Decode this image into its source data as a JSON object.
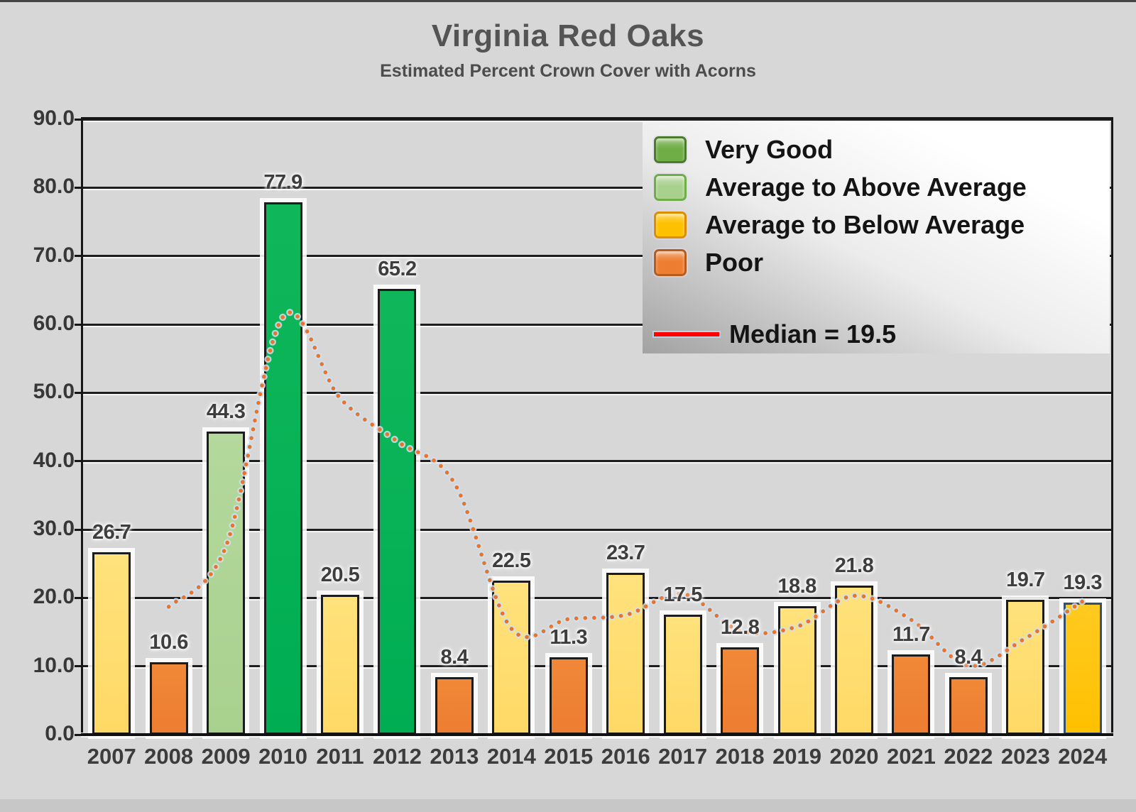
{
  "chart_data": {
    "type": "bar",
    "title": "Virginia Red Oaks",
    "subtitle": "Estimated Percent Crown Cover with Acorns",
    "xlabel": "",
    "ylabel": "",
    "ylim": [
      0,
      90
    ],
    "ytick_step": 10,
    "ytick_labels": [
      "0.0",
      "10.0",
      "20.0",
      "30.0",
      "40.0",
      "50.0",
      "60.0",
      "70.0",
      "80.0",
      "90.0"
    ],
    "grid": "horizontal",
    "legend_position": "top-right",
    "categories": [
      "2007",
      "2008",
      "2009",
      "2010",
      "2011",
      "2012",
      "2013",
      "2014",
      "2015",
      "2016",
      "2017",
      "2018",
      "2019",
      "2020",
      "2021",
      "2022",
      "2023",
      "2024"
    ],
    "series": [
      {
        "name": "Estimated Percent Crown Cover with Acorns",
        "type": "bar",
        "values": [
          26.7,
          10.6,
          44.3,
          77.9,
          20.5,
          65.2,
          8.4,
          22.5,
          11.3,
          23.7,
          17.5,
          12.8,
          18.8,
          21.8,
          11.7,
          8.4,
          19.7,
          19.3
        ],
        "ratings": [
          "Average to Below Average",
          "Poor",
          "Average to Above Average",
          "Very Good",
          "Average to Below Average",
          "Very Good",
          "Poor",
          "Average to Below Average",
          "Poor",
          "Average to Below Average",
          "Average to Below Average",
          "Poor",
          "Average to Below Average",
          "Average to Below Average",
          "Poor",
          "Poor",
          "Average to Below Average",
          "Average to Below Average"
        ],
        "current_year_highlight": "2024"
      },
      {
        "name": "Dotted trend (2-year moving average)",
        "type": "line-dotted",
        "x": [
          "2008",
          "2009",
          "2010",
          "2011",
          "2012",
          "2013",
          "2014",
          "2015",
          "2016",
          "2017",
          "2018",
          "2019",
          "2020",
          "2021",
          "2022",
          "2023",
          "2024"
        ],
        "values": [
          18.7,
          27.5,
          61.1,
          49.2,
          42.9,
          36.8,
          15.5,
          16.9,
          17.5,
          20.6,
          15.2,
          15.8,
          20.3,
          16.8,
          10.1,
          14.1,
          19.5
        ]
      }
    ],
    "median": 19.5,
    "legend": [
      {
        "label": "Very Good",
        "swatch": "square",
        "fill": "#6fad46",
        "border": "#4e7a2e"
      },
      {
        "label": "Average to Above Average",
        "swatch": "square",
        "fill": "#a9d18e",
        "border": "#70ad47"
      },
      {
        "label": "Average to Below Average",
        "swatch": "square",
        "fill": "#ffc000",
        "border": "#dd8e00"
      },
      {
        "label": "Poor",
        "swatch": "square",
        "fill": "#ed7d31",
        "border": "#b95c1a"
      },
      {
        "label": "Median = 19.5",
        "swatch": "line",
        "fill": "#ff0000",
        "border": "#ff0000"
      }
    ]
  },
  "colors": {
    "page_background": "#d7d7d7",
    "gridline": "#1d1d1d",
    "trend_line": "#e8732a",
    "trend_halo": "#cfe0ef",
    "bar_very_good": "#00ad52",
    "bar_avg_above": "#a9d18e",
    "bar_avg_below": "#ffd966",
    "bar_poor": "#ed7d31",
    "bar_current_year": "#ffc000",
    "bar_current_border": "#33506e",
    "bar_border": "#1c1c1c",
    "label_text": "#3e3e3e"
  }
}
